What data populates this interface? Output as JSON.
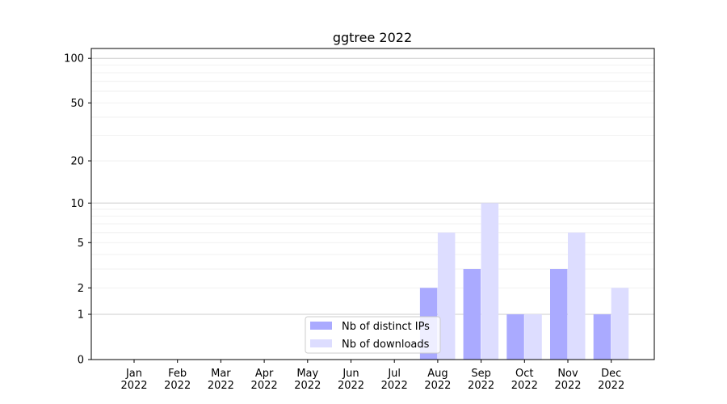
{
  "chart_data": {
    "type": "bar",
    "title": "ggtree 2022",
    "yscale": "symlog (log10(1+y))",
    "categories": [
      "Jan\n2022",
      "Feb\n2022",
      "Mar\n2022",
      "Apr\n2022",
      "May\n2022",
      "Jun\n2022",
      "Jul\n2022",
      "Aug\n2022",
      "Sep\n2022",
      "Oct\n2022",
      "Nov\n2022",
      "Dec\n2022"
    ],
    "series": [
      {
        "name": "Nb of distinct IPs",
        "color": "#aaaaff",
        "values": [
          0,
          0,
          0,
          0,
          0,
          0,
          0,
          2,
          3,
          1,
          3,
          1
        ]
      },
      {
        "name": "Nb of downloads",
        "color": "#ddddff",
        "values": [
          0,
          0,
          0,
          0,
          0,
          0,
          0,
          6,
          10,
          1,
          6,
          2
        ]
      }
    ],
    "yticks": [
      0,
      1,
      2,
      5,
      10,
      20,
      50,
      100
    ],
    "ylim": [
      0,
      116
    ],
    "grid": true,
    "legend": "lower-center"
  }
}
